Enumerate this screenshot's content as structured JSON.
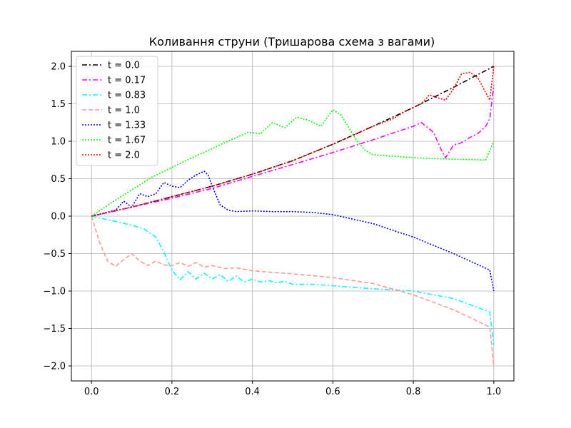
{
  "chart_data": {
    "type": "line",
    "title": "Коливання струни (Тришарова схема з вагами)",
    "xlabel": "",
    "ylabel": "",
    "xlim": [
      -0.05,
      1.05
    ],
    "ylim": [
      -2.2,
      2.2
    ],
    "xticks": [
      0.0,
      0.2,
      0.4,
      0.6,
      0.8,
      1.0
    ],
    "xtick_labels": [
      "0.0",
      "0.2",
      "0.4",
      "0.6",
      "0.8",
      "1.0"
    ],
    "yticks": [
      -2.0,
      -1.5,
      -1.0,
      -0.5,
      0.0,
      0.5,
      1.0,
      1.5,
      2.0
    ],
    "ytick_labels": [
      "−2.0",
      "−1.5",
      "−1.0",
      "−0.5",
      "0.0",
      "0.5",
      "1.0",
      "1.5",
      "2.0"
    ],
    "grid": true,
    "legend_position": "top-left",
    "series": [
      {
        "name": "t = 0.0",
        "color": "#000000",
        "dash": "dashdot",
        "x": [
          0,
          0.1,
          0.2,
          0.3,
          0.4,
          0.5,
          0.6,
          0.7,
          0.8,
          0.9,
          1.0
        ],
        "y": [
          0,
          0.12,
          0.26,
          0.4,
          0.56,
          0.74,
          0.96,
          1.2,
          1.45,
          1.72,
          2.0
        ]
      },
      {
        "name": "t = 0.17",
        "color": "#ff00ff",
        "dash": "dashdot",
        "x": [
          0,
          0.1,
          0.2,
          0.3,
          0.4,
          0.5,
          0.6,
          0.7,
          0.8,
          0.82,
          0.85,
          0.87,
          0.88,
          0.9,
          0.92,
          0.94,
          0.96,
          0.98,
          0.99,
          1.0
        ],
        "y": [
          0,
          0.12,
          0.24,
          0.37,
          0.53,
          0.69,
          0.85,
          1.02,
          1.2,
          1.25,
          1.12,
          0.88,
          0.78,
          0.95,
          0.98,
          1.05,
          1.1,
          1.2,
          1.3,
          1.75
        ]
      },
      {
        "name": "t = 0.83",
        "color": "#00ffff",
        "dash": "dashdot",
        "x": [
          0,
          0.05,
          0.1,
          0.13,
          0.16,
          0.18,
          0.2,
          0.22,
          0.24,
          0.26,
          0.28,
          0.3,
          0.32,
          0.34,
          0.36,
          0.38,
          0.4,
          0.42,
          0.44,
          0.46,
          0.48,
          0.5,
          0.55,
          0.6,
          0.65,
          0.7,
          0.8,
          0.9,
          0.99,
          1.0
        ],
        "y": [
          0,
          -0.06,
          -0.12,
          -0.17,
          -0.28,
          -0.48,
          -0.72,
          -0.85,
          -0.74,
          -0.84,
          -0.76,
          -0.84,
          -0.78,
          -0.87,
          -0.8,
          -0.88,
          -0.84,
          -0.88,
          -0.86,
          -0.89,
          -0.87,
          -0.91,
          -0.91,
          -0.93,
          -0.95,
          -0.97,
          -1.0,
          -1.1,
          -1.28,
          -1.72
        ]
      },
      {
        "name": "t = 1.0",
        "color": "#ff9999",
        "dash": "dashed",
        "x": [
          0,
          0.02,
          0.04,
          0.06,
          0.08,
          0.1,
          0.12,
          0.14,
          0.16,
          0.18,
          0.2,
          0.22,
          0.24,
          0.26,
          0.28,
          0.3,
          0.33,
          0.36,
          0.4,
          0.45,
          0.5,
          0.6,
          0.7,
          0.8,
          0.9,
          0.99,
          1.0
        ],
        "y": [
          0,
          -0.35,
          -0.6,
          -0.67,
          -0.58,
          -0.5,
          -0.6,
          -0.66,
          -0.6,
          -0.65,
          -0.66,
          -0.62,
          -0.67,
          -0.62,
          -0.68,
          -0.66,
          -0.7,
          -0.69,
          -0.73,
          -0.75,
          -0.77,
          -0.82,
          -0.9,
          -1.05,
          -1.25,
          -1.48,
          -2.0
        ]
      },
      {
        "name": "t = 1.33",
        "color": "#0000ff",
        "dash": "dotted",
        "x": [
          0,
          0.03,
          0.06,
          0.08,
          0.1,
          0.12,
          0.14,
          0.16,
          0.18,
          0.2,
          0.22,
          0.24,
          0.26,
          0.28,
          0.29,
          0.3,
          0.32,
          0.34,
          0.36,
          0.4,
          0.45,
          0.5,
          0.55,
          0.6,
          0.7,
          0.8,
          0.9,
          0.99,
          1.0
        ],
        "y": [
          0,
          0.04,
          0.08,
          0.2,
          0.12,
          0.3,
          0.26,
          0.3,
          0.45,
          0.4,
          0.38,
          0.48,
          0.55,
          0.6,
          0.55,
          0.4,
          0.15,
          0.08,
          0.06,
          0.07,
          0.06,
          0.06,
          0.05,
          0.02,
          -0.1,
          -0.28,
          -0.5,
          -0.72,
          -1.0
        ]
      },
      {
        "name": "t = 1.67",
        "color": "#00ff00",
        "dash": "dotted",
        "x": [
          0,
          0.05,
          0.1,
          0.15,
          0.2,
          0.25,
          0.3,
          0.33,
          0.36,
          0.39,
          0.42,
          0.45,
          0.48,
          0.51,
          0.54,
          0.57,
          0.6,
          0.62,
          0.64,
          0.66,
          0.68,
          0.7,
          0.8,
          0.9,
          0.98,
          1.0
        ],
        "y": [
          0,
          0.18,
          0.35,
          0.52,
          0.65,
          0.78,
          0.9,
          0.98,
          1.05,
          1.12,
          1.1,
          1.25,
          1.18,
          1.32,
          1.28,
          1.2,
          1.42,
          1.35,
          1.18,
          1.0,
          0.88,
          0.82,
          0.78,
          0.76,
          0.75,
          1.0
        ]
      },
      {
        "name": "t = 2.0",
        "color": "#ff0000",
        "dash": "dotted",
        "x": [
          0,
          0.1,
          0.2,
          0.3,
          0.4,
          0.5,
          0.6,
          0.7,
          0.75,
          0.78,
          0.82,
          0.84,
          0.86,
          0.88,
          0.9,
          0.92,
          0.94,
          0.96,
          0.98,
          0.99,
          1.0
        ],
        "y": [
          0,
          0.12,
          0.26,
          0.4,
          0.56,
          0.74,
          0.96,
          1.2,
          1.3,
          1.4,
          1.5,
          1.62,
          1.58,
          1.55,
          1.7,
          1.9,
          1.92,
          1.85,
          1.65,
          1.55,
          2.0
        ]
      }
    ]
  }
}
